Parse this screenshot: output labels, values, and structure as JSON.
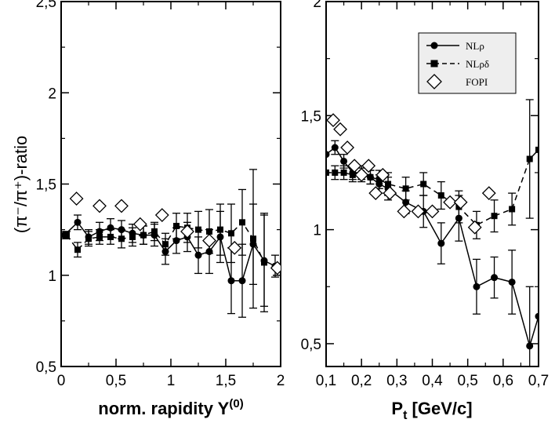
{
  "chart_data": [
    {
      "type": "scatter",
      "panel": "left",
      "xlabel": "norm. rapidity Y",
      "xlabel_sup": "(0)",
      "ylabel": "(π⁻/π⁺)-ratio",
      "xlim": [
        0,
        2
      ],
      "ylim": [
        0.5,
        2.5
      ],
      "xticks": [
        "0",
        "0,5",
        "1",
        "1,5",
        "2"
      ],
      "yticks": [
        "0,5",
        "1",
        "1,5",
        "2",
        "2,5"
      ],
      "series": [
        {
          "name": "NLρ",
          "marker": "circle",
          "line": "solid",
          "x": [
            0.03,
            0.15,
            0.25,
            0.35,
            0.45,
            0.55,
            0.65,
            0.75,
            0.85,
            0.95,
            1.05,
            1.15,
            1.25,
            1.35,
            1.45,
            1.55,
            1.65,
            1.75,
            1.85,
            1.95
          ],
          "y": [
            1.22,
            1.29,
            1.21,
            1.24,
            1.26,
            1.25,
            1.23,
            1.22,
            1.22,
            1.13,
            1.19,
            1.21,
            1.11,
            1.13,
            1.21,
            0.97,
            0.97,
            1.17,
            1.08,
            1.05
          ],
          "err": [
            0.02,
            0.04,
            0.04,
            0.05,
            0.05,
            0.05,
            0.05,
            0.05,
            0.06,
            0.07,
            0.07,
            0.08,
            0.1,
            0.12,
            0.14,
            0.18,
            0.2,
            0.22,
            0.25,
            0.06
          ]
        },
        {
          "name": "NLρδ",
          "marker": "square",
          "line": "dashed",
          "x": [
            0.05,
            0.15,
            0.25,
            0.35,
            0.45,
            0.55,
            0.65,
            0.75,
            0.85,
            0.95,
            1.05,
            1.15,
            1.25,
            1.35,
            1.45,
            1.55,
            1.65,
            1.75,
            1.85
          ],
          "y": [
            1.22,
            1.14,
            1.2,
            1.21,
            1.21,
            1.2,
            1.21,
            1.22,
            1.24,
            1.17,
            1.27,
            1.26,
            1.25,
            1.24,
            1.25,
            1.23,
            1.29,
            1.2,
            1.07
          ],
          "err": [
            0.02,
            0.04,
            0.04,
            0.04,
            0.04,
            0.05,
            0.05,
            0.05,
            0.05,
            0.06,
            0.07,
            0.08,
            0.1,
            0.12,
            0.14,
            0.16,
            0.18,
            0.38,
            0.27
          ]
        },
        {
          "name": "FOPI",
          "marker": "diamond",
          "line": "none",
          "x": [
            0.14,
            0.35,
            0.55,
            0.72,
            0.92,
            1.15,
            1.35,
            1.58,
            1.97
          ],
          "y": [
            1.42,
            1.38,
            1.38,
            1.28,
            1.33,
            1.24,
            1.19,
            1.15,
            1.04
          ]
        }
      ]
    },
    {
      "type": "scatter",
      "panel": "right",
      "xlabel": "P",
      "xlabel_sub": "t",
      "xlabel_rest": " [GeV/c]",
      "xlim": [
        0.1,
        0.7
      ],
      "ylim": [
        0.4,
        2.0
      ],
      "xticks": [
        "0,1",
        "0,2",
        "0,3",
        "0,4",
        "0,5",
        "0,6",
        "0,7"
      ],
      "yticks": [
        "0,5",
        "1",
        "1,5",
        "2"
      ],
      "xtick_values": [
        0.1,
        0.2,
        0.3,
        0.4,
        0.5,
        0.6,
        0.7
      ],
      "ytick_values": [
        0.5,
        1,
        1.5,
        2
      ],
      "legend_position": "top-right",
      "series": [
        {
          "name": "NLρ",
          "marker": "circle",
          "line": "solid",
          "x": [
            0.1,
            0.125,
            0.15,
            0.175,
            0.2,
            0.225,
            0.25,
            0.275,
            0.325,
            0.375,
            0.425,
            0.475,
            0.525,
            0.575,
            0.625,
            0.675,
            0.7
          ],
          "y": [
            1.33,
            1.36,
            1.3,
            1.25,
            1.25,
            1.23,
            1.2,
            1.18,
            1.12,
            1.08,
            0.94,
            1.05,
            0.75,
            0.79,
            0.77,
            0.49,
            0.62
          ],
          "err": [
            0.0,
            0.03,
            0.03,
            0.03,
            0.03,
            0.03,
            0.04,
            0.05,
            0.05,
            0.07,
            0.09,
            0.1,
            0.12,
            0.09,
            0.14,
            0.26,
            0.0
          ]
        },
        {
          "name": "NLρδ",
          "marker": "square",
          "line": "dashed",
          "x": [
            0.1,
            0.125,
            0.15,
            0.175,
            0.2,
            0.225,
            0.25,
            0.275,
            0.325,
            0.375,
            0.425,
            0.475,
            0.525,
            0.575,
            0.625,
            0.675,
            0.7
          ],
          "y": [
            1.25,
            1.25,
            1.25,
            1.24,
            1.24,
            1.23,
            1.22,
            1.2,
            1.18,
            1.2,
            1.15,
            1.1,
            1.02,
            1.06,
            1.09,
            1.31,
            1.35
          ],
          "err": [
            0.0,
            0.03,
            0.03,
            0.03,
            0.03,
            0.03,
            0.04,
            0.05,
            0.05,
            0.05,
            0.06,
            0.07,
            0.06,
            0.07,
            0.07,
            0.26,
            0.0
          ]
        },
        {
          "name": "FOPI",
          "marker": "diamond",
          "line": "none",
          "x": [
            0.12,
            0.14,
            0.16,
            0.18,
            0.2,
            0.22,
            0.24,
            0.26,
            0.28,
            0.32,
            0.36,
            0.4,
            0.45,
            0.48,
            0.52,
            0.56
          ],
          "y": [
            1.48,
            1.44,
            1.36,
            1.28,
            1.24,
            1.28,
            1.16,
            1.24,
            1.16,
            1.08,
            1.08,
            1.08,
            1.12,
            1.12,
            1.01,
            1.16
          ]
        }
      ]
    }
  ],
  "legend": {
    "items": [
      "NLρ",
      "NLρδ",
      "FOPI"
    ]
  }
}
